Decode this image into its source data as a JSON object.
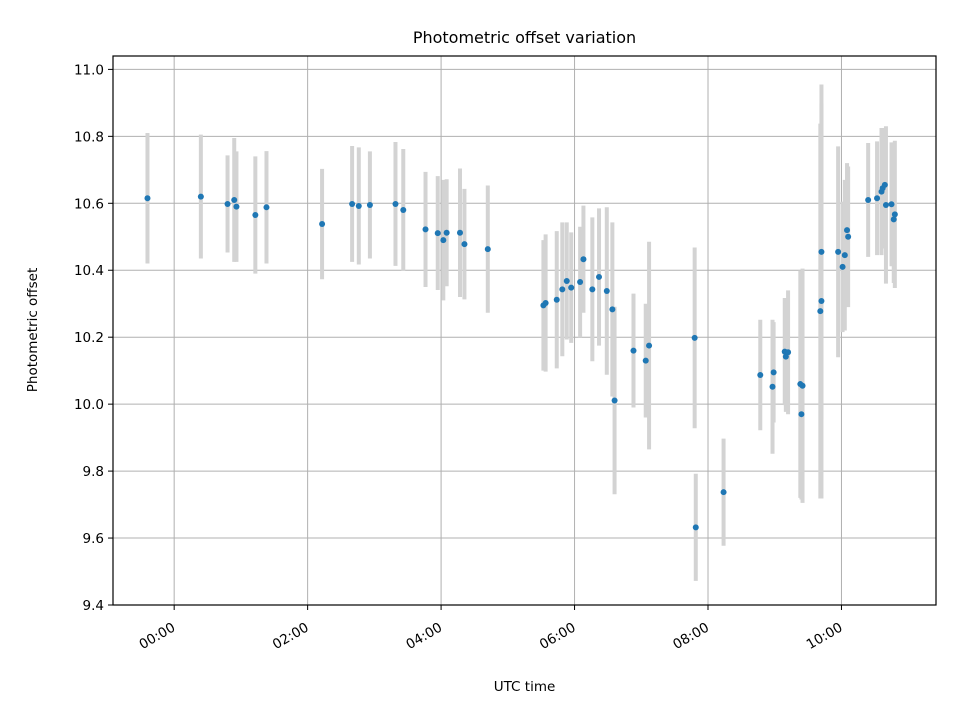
{
  "chart_data": {
    "type": "scatter",
    "title": "Photometric offset variation",
    "xlabel": "UTC time",
    "ylabel": "Photometric offset",
    "ylim": [
      9.4,
      11.04
    ],
    "xlim": [
      "-00:55",
      "11:25"
    ],
    "grid": true,
    "x_ticks": [
      "00:00",
      "02:00",
      "04:00",
      "06:00",
      "08:00",
      "10:00"
    ],
    "y_ticks": [
      "9.4",
      "9.6",
      "9.8",
      "10.0",
      "10.2",
      "10.4",
      "10.6",
      "10.8",
      "11.0"
    ],
    "colors": {
      "point": "#1f77b4",
      "errorbar": "#d3d3d3",
      "grid": "#b0b0b0"
    },
    "series": [
      {
        "x": [
          "-00:24",
          "00:24",
          "00:48",
          "00:54",
          "00:56",
          "01:13",
          "01:23",
          "02:13",
          "02:40",
          "02:46",
          "02:56",
          "03:19",
          "03:26",
          "03:46",
          "03:57",
          "04:02",
          "04:05",
          "04:17",
          "04:21",
          "04:42",
          "05:32",
          "05:34",
          "05:44",
          "05:49",
          "05:53",
          "05:57",
          "06:05",
          "06:08",
          "06:16",
          "06:22",
          "06:29",
          "06:34",
          "06:36",
          "06:53",
          "07:04",
          "07:07",
          "07:48",
          "07:49",
          "08:14",
          "08:47",
          "08:58",
          "08:59",
          "09:09",
          "09:10",
          "09:12",
          "09:23",
          "09:24",
          "09:25",
          "09:41",
          "09:42",
          "09:42",
          "09:57",
          "10:01",
          "10:03",
          "10:05",
          "10:06",
          "10:24",
          "10:32",
          "10:36",
          "10:37",
          "10:39",
          "10:40",
          "10:45",
          "10:47",
          "10:48"
        ],
        "y": [
          10.615,
          10.62,
          10.598,
          10.61,
          10.59,
          10.565,
          10.588,
          10.538,
          10.598,
          10.592,
          10.595,
          10.598,
          10.58,
          10.522,
          10.511,
          10.49,
          10.512,
          10.512,
          10.478,
          10.463,
          10.295,
          10.302,
          10.312,
          10.343,
          10.368,
          10.348,
          10.365,
          10.433,
          10.343,
          10.38,
          10.338,
          10.283,
          10.011,
          10.16,
          10.13,
          10.175,
          10.198,
          9.632,
          9.737,
          10.087,
          10.052,
          10.095,
          10.157,
          10.142,
          10.155,
          10.06,
          9.97,
          10.055,
          10.278,
          10.308,
          10.455,
          10.455,
          10.41,
          10.445,
          10.52,
          10.5,
          10.61,
          10.615,
          10.635,
          10.645,
          10.655,
          10.595,
          10.597,
          10.552,
          10.567
        ],
        "yerr": [
          0.195,
          0.185,
          0.145,
          0.185,
          0.165,
          0.175,
          0.168,
          0.165,
          0.173,
          0.175,
          0.16,
          0.185,
          0.182,
          0.172,
          0.17,
          0.18,
          0.16,
          0.192,
          0.165,
          0.19,
          0.195,
          0.205,
          0.205,
          0.2,
          0.175,
          0.165,
          0.165,
          0.16,
          0.215,
          0.205,
          0.25,
          0.26,
          0.28,
          0.17,
          0.17,
          0.31,
          0.27,
          0.16,
          0.16,
          0.165,
          0.2,
          0.15,
          0.16,
          0.165,
          0.185,
          0.34,
          0.255,
          0.35,
          0.56,
          0.59,
          0.5,
          0.315,
          0.195,
          0.225,
          0.2,
          0.21,
          0.17,
          0.17,
          0.19,
          0.18,
          0.165,
          0.235,
          0.185,
          0.19,
          0.22
        ]
      }
    ]
  }
}
